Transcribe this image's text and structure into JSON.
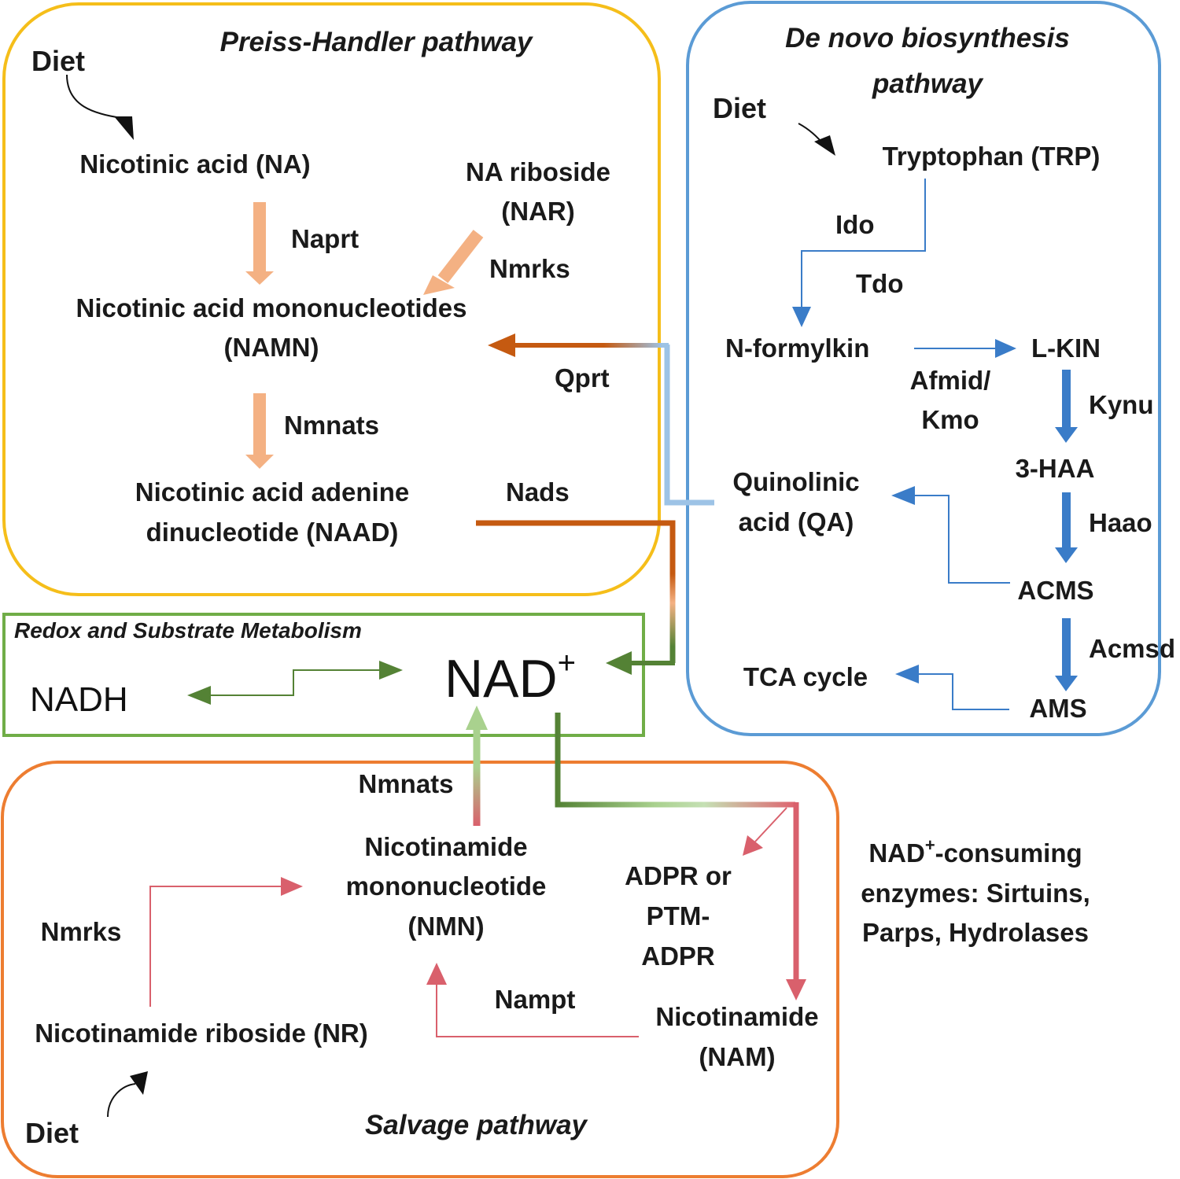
{
  "colors": {
    "preiss_box": "#F5BE1A",
    "denovo_box": "#5B9BD5",
    "redox_box": "#70AD47",
    "salvage_box": "#ED7D31",
    "peach_arrow": "#F4B183",
    "blue_arrow": "#3A7CC8",
    "brown_arrow": "#C55A11",
    "green_arrow": "#548235",
    "red_arrow": "#D9606C",
    "black_arrow": "#111111"
  },
  "preiss": {
    "title": "Preiss-Handler pathway",
    "diet": "Diet",
    "na": "Nicotinic acid (NA)",
    "naprt": "Naprt",
    "nar_line1": "NA riboside",
    "nar_line2": "(NAR)",
    "nmrks": "Nmrks",
    "namn_line1": "Nicotinic acid mononucleotides",
    "namn_line2": "(NAMN)",
    "qprt": "Qprt",
    "nmnats": "Nmnats",
    "naad_line1": "Nicotinic acid adenine",
    "naad_line2": "dinucleotide (NAAD)",
    "nads": "Nads"
  },
  "denovo": {
    "title_line1": "De novo biosynthesis",
    "title_line2": "pathway",
    "diet": "Diet",
    "trp": "Tryptophan (TRP)",
    "ido": "Ido",
    "tdo": "Tdo",
    "nformylkin": "N-formylkin",
    "lkin": "L-KIN",
    "afmid_line1": "Afmid/",
    "afmid_line2": "Kmo",
    "kynu": "Kynu",
    "haa": "3-HAA",
    "haao": "Haao",
    "qa_line1": "Quinolinic",
    "qa_line2": "acid (QA)",
    "acms": "ACMS",
    "acmsd": "Acmsd",
    "tca": "TCA cycle",
    "ams": "AMS"
  },
  "redox": {
    "title": "Redox and Substrate Metabolism",
    "nad": "NAD",
    "nad_sup": "+",
    "nadh": "NADH"
  },
  "salvage": {
    "title": "Salvage pathway",
    "nmnats": "Nmnats",
    "nmn_line1": "Nicotinamide",
    "nmn_line2": "mononucleotide",
    "nmn_line3": "(NMN)",
    "adpr_line1": "ADPR or",
    "adpr_line2": "PTM-",
    "adpr_line3": "ADPR",
    "nmrks": "Nmrks",
    "nampt": "Nampt",
    "nr": "Nicotinamide riboside (NR)",
    "nam_line1": "Nicotinamide",
    "nam_line2": "(NAM)",
    "diet": "Diet"
  },
  "consuming": {
    "line1_pre": "NAD",
    "line1_sup": "+",
    "line1_post": "-consuming",
    "line2": "enzymes: Sirtuins,",
    "line3": "Parps, Hydrolases"
  }
}
